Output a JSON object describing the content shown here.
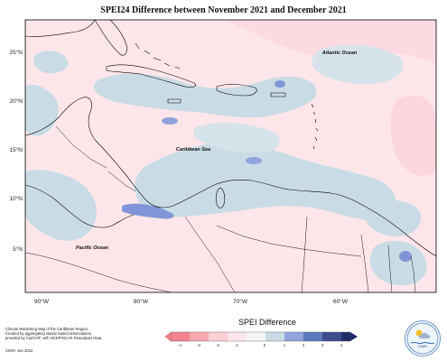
{
  "map": {
    "title": "SPEI24 Difference between November 2021 and December 2021",
    "labels": {
      "atlantic": "Atlantic Ocean",
      "caribbean": "Caribbean Sea",
      "pacific": "Pacific Ocean"
    },
    "lat_ticks": [
      "25°N",
      "20°N",
      "15°N",
      "10°N",
      "5°N"
    ],
    "lon_ticks": [
      "90°W",
      "80°W",
      "70°W",
      "60°W"
    ],
    "colors": {
      "light_pink": "#fde6ea",
      "light_blue": "#c9dce5",
      "mid_blue": "#7f95d8",
      "land_outline": "#000000"
    }
  },
  "legend": {
    "title": "SPEI Difference",
    "ticks": [
      "-4",
      "-3",
      "-2",
      "-1",
      "0",
      "1",
      "2",
      "3",
      "4"
    ],
    "colors": [
      "#f2838e",
      "#f7a9b1",
      "#fbcfd5",
      "#fde6ea",
      "#f3f6f8",
      "#c9dce5",
      "#8fa3dc",
      "#5a78bf",
      "#3d4c8c",
      "#232c6a"
    ]
  },
  "credit": {
    "lines": [
      "Climate Monitoring Map of the Caribbean Region.",
      "Created by aggregating station based observations,",
      "provided by CariCOF, with NCEP/NCAR Reanalysis Data."
    ],
    "footer": "CIMH: Jan 2022"
  },
  "logo": {
    "text": "CIMH"
  }
}
